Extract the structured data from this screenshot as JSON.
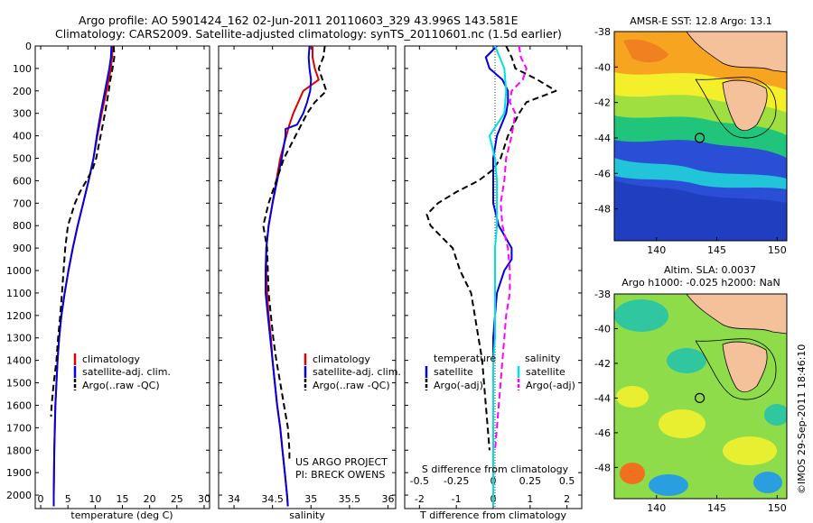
{
  "header": {
    "line1": "Argo profile: AO 5901424_162 02-Jun-2011 20110603_329 43.996S 143.581E",
    "line2": "Climatology: CARS2009. Satellite-adjusted climatology: synTS_20110601.nc (1.5d earlier)"
  },
  "colors": {
    "climatology": "#e00000",
    "satellite": "#0000e0",
    "argo": "#000000",
    "sat_salinity_diff": "#00e0e0",
    "argo_salinity_diff": "#ff00ff"
  },
  "depth_axis": {
    "ylim": [
      0,
      2060
    ],
    "ticks": [
      "0",
      "100",
      "200",
      "300",
      "400",
      "500",
      "600",
      "700",
      "800",
      "900",
      "1000",
      "1100",
      "1200",
      "1300",
      "1400",
      "1500",
      "1600",
      "1700",
      "1800",
      "1900",
      "2000"
    ]
  },
  "chart_data": [
    {
      "type": "line",
      "id": "temperature",
      "xlabel": "temperature (deg C)",
      "xlim": [
        -1,
        31
      ],
      "xticks": [
        0,
        5,
        10,
        15,
        20,
        25,
        30
      ],
      "legend": {
        "placement": "lower-middle",
        "items": [
          "climatology",
          "satellite-adj. clim.",
          "Argo(..raw -QC)"
        ]
      },
      "series": [
        {
          "name": "climatology",
          "style": "solid",
          "color": "#e00000",
          "depth": [
            0,
            50,
            100,
            200,
            300,
            400,
            500,
            600,
            700,
            800,
            900,
            1000,
            1100,
            1200,
            1300,
            1400,
            1500,
            1600,
            1700,
            1800,
            1900,
            2000,
            2050
          ],
          "values": [
            13.2,
            13.1,
            12.9,
            12.1,
            11.2,
            10.4,
            9.7,
            8.8,
            7.8,
            6.8,
            5.9,
            5.1,
            4.4,
            3.8,
            3.4,
            3.1,
            2.9,
            2.7,
            2.6,
            2.5,
            2.45,
            2.4,
            2.4
          ]
        },
        {
          "name": "satellite-adj. clim.",
          "style": "solid",
          "color": "#0000e0",
          "depth": [
            0,
            50,
            100,
            200,
            300,
            400,
            500,
            600,
            700,
            800,
            900,
            1000,
            1100,
            1200,
            1300,
            1400,
            1500,
            1600,
            1700,
            1800,
            1900,
            2000,
            2050
          ],
          "values": [
            13.0,
            12.9,
            12.6,
            11.8,
            11.0,
            10.3,
            9.7,
            8.8,
            7.8,
            6.8,
            5.9,
            5.1,
            4.4,
            3.8,
            3.4,
            3.1,
            2.9,
            2.7,
            2.6,
            2.5,
            2.45,
            2.4,
            2.4
          ]
        },
        {
          "name": "Argo(..raw -QC)",
          "style": "dashed",
          "color": "#000000",
          "depth": [
            0,
            50,
            100,
            150,
            200,
            300,
            400,
            500,
            550,
            600,
            650,
            700,
            800,
            900,
            1000,
            1100,
            1200,
            1300,
            1400,
            1500,
            1600,
            1650
          ],
          "values": [
            13.4,
            13.5,
            13.2,
            12.8,
            12.5,
            11.8,
            11.0,
            10.2,
            9.5,
            8.4,
            7.2,
            6.3,
            5.0,
            4.5,
            4.2,
            3.9,
            3.6,
            3.2,
            2.9,
            2.4,
            2.0,
            1.9
          ]
        }
      ]
    },
    {
      "type": "line",
      "id": "salinity",
      "xlabel": "salinity",
      "xlim": [
        33.8,
        36.1
      ],
      "xticks": [
        34,
        34.5,
        35,
        35.5,
        36
      ],
      "legend": {
        "placement": "lower-right",
        "items": [
          "climatology",
          "satellite-adj. clim.",
          "Argo(..raw -QC)"
        ]
      },
      "annotation": [
        "US ARGO PROJECT",
        "PI: BRECK OWENS"
      ],
      "series": [
        {
          "name": "climatology",
          "style": "solid",
          "color": "#e00000",
          "depth": [
            0,
            50,
            100,
            150,
            200,
            300,
            350,
            400,
            500,
            600,
            700,
            800,
            900,
            1000,
            1100,
            1200,
            1300,
            1400,
            1500,
            1600,
            1700,
            1800,
            1900,
            2000,
            2050
          ],
          "values": [
            35.02,
            35.02,
            35.05,
            35.1,
            34.9,
            34.77,
            34.72,
            34.68,
            34.6,
            34.55,
            34.5,
            34.45,
            34.42,
            34.42,
            34.43,
            34.45,
            34.48,
            34.5,
            34.53,
            34.56,
            34.6,
            34.63,
            34.66,
            34.69,
            34.7
          ]
        },
        {
          "name": "satellite-adj. clim.",
          "style": "solid",
          "color": "#0000e0",
          "depth": [
            0,
            50,
            100,
            150,
            200,
            250,
            300,
            350,
            370,
            400,
            500,
            600,
            700,
            800,
            900,
            1000,
            1100,
            1200,
            1300,
            1400,
            1500,
            1600,
            1700,
            1800,
            1900,
            2000,
            2050
          ],
          "values": [
            34.98,
            34.97,
            34.98,
            35.0,
            34.99,
            34.95,
            34.9,
            34.82,
            34.67,
            34.67,
            34.62,
            34.56,
            34.5,
            34.45,
            34.42,
            34.41,
            34.41,
            34.44,
            34.47,
            34.5,
            34.53,
            34.56,
            34.6,
            34.63,
            34.66,
            34.69,
            34.7
          ]
        },
        {
          "name": "Argo(..raw -QC)",
          "style": "dashed",
          "color": "#000000",
          "depth": [
            0,
            50,
            100,
            150,
            200,
            250,
            300,
            400,
            500,
            600,
            700,
            800,
            900,
            1000,
            1100,
            1200,
            1300,
            1400,
            1500,
            1600,
            1700,
            1800,
            1850
          ],
          "values": [
            35.18,
            35.16,
            35.1,
            35.15,
            35.2,
            35.05,
            34.95,
            34.8,
            34.65,
            34.55,
            34.45,
            34.38,
            34.43,
            34.44,
            34.45,
            34.48,
            34.51,
            34.55,
            34.6,
            34.65,
            34.7,
            34.72,
            34.72
          ]
        }
      ]
    },
    {
      "type": "line",
      "id": "differences",
      "xlabel_top": "S difference from climatology",
      "xlabel": "T difference from climatology",
      "xlim": [
        -2.4,
        2.4
      ],
      "xticks_T": [
        -2,
        -1,
        0,
        1,
        2
      ],
      "xticks_S": [
        "-0.5",
        "-0.25",
        "0",
        "0.25",
        "0.5"
      ],
      "legend": {
        "placement": "lower-middle",
        "temperature_title": "temperature",
        "salinity_title": "salinity",
        "items": [
          "satellite",
          "Argo(-adj)",
          "satellite",
          "Argo(-adj)"
        ]
      },
      "series": [
        {
          "name": "temperature satellite",
          "style": "solid",
          "color": "#0000e0",
          "depth": [
            0,
            50,
            100,
            150,
            200,
            250,
            300,
            400,
            500,
            600,
            700,
            800,
            900,
            950,
            1000,
            1100,
            1200,
            1300,
            1400,
            1500,
            1600,
            1700,
            1800,
            1900,
            2000,
            2050
          ],
          "values": [
            0.1,
            -0.2,
            -0.1,
            0.25,
            0.4,
            0.4,
            0.35,
            0.1,
            0,
            0,
            0,
            0.15,
            0.5,
            0.5,
            0.3,
            0.1,
            0.05,
            0,
            0,
            0,
            0,
            0,
            0,
            0,
            0,
            0
          ]
        },
        {
          "name": "temperature Argo(-adj)",
          "style": "dashed",
          "color": "#000000",
          "depth": [
            0,
            50,
            100,
            150,
            200,
            250,
            300,
            400,
            500,
            550,
            600,
            650,
            700,
            750,
            800,
            850,
            900,
            1000,
            1100,
            1200,
            1300,
            1400,
            1500,
            1600,
            1700,
            1800
          ],
          "values": [
            0.35,
            0.5,
            0.6,
            1.2,
            1.7,
            0.9,
            0.7,
            0.4,
            0.2,
            0,
            -0.4,
            -1.0,
            -1.5,
            -1.8,
            -1.7,
            -1.4,
            -1.1,
            -0.9,
            -0.6,
            -0.5,
            -0.4,
            -0.3,
            -0.25,
            -0.2,
            -0.15,
            -0.1
          ]
        },
        {
          "name": "salinity satellite",
          "style": "solid",
          "color": "#00e0e0",
          "depth": [
            0,
            100,
            200,
            300,
            400,
            500,
            600,
            700,
            800,
            900,
            1000,
            1100,
            1200,
            1300,
            1400,
            1500,
            1600,
            1700,
            1800,
            1900,
            2000,
            2050
          ],
          "values": [
            0.05,
            0.3,
            0.35,
            0.3,
            -0.1,
            0.05,
            0.1,
            0.1,
            0.1,
            0.05,
            0.05,
            0.05,
            0.05,
            0.05,
            0.0,
            0.0,
            0.0,
            0.0,
            0.0,
            0.0,
            0.0,
            0.0
          ]
        },
        {
          "name": "salinity Argo(-adj)",
          "style": "dashed",
          "color": "#ff00ff",
          "depth": [
            0,
            50,
            100,
            150,
            200,
            250,
            300,
            400,
            500,
            600,
            700,
            800,
            900,
            1000,
            1100,
            1200,
            1300,
            1400,
            1500,
            1600,
            1700,
            1800
          ],
          "values": [
            0.7,
            0.75,
            0.9,
            0.8,
            0.5,
            0.45,
            0.6,
            0.5,
            0.35,
            0.3,
            0.2,
            0.25,
            0.4,
            0.45,
            0.45,
            0.35,
            0.3,
            0.25,
            0.2,
            0.15,
            0.1,
            0.05
          ]
        }
      ]
    },
    {
      "type": "heatmap",
      "id": "sst-map",
      "title": "AMSR-E SST: 12.8  Argo: 13.1",
      "xlim": [
        136.5,
        150.8
      ],
      "ylim": [
        -49.8,
        -38
      ],
      "xticks": [
        "140",
        "145",
        "150"
      ],
      "yticks": [
        "-38",
        "-40",
        "-42",
        "-44",
        "-46",
        "-48"
      ],
      "marker": {
        "lon": 143.581,
        "lat": -43.996
      }
    },
    {
      "type": "heatmap",
      "id": "sla-map",
      "title": "Altim. SLA: 0.0037",
      "subtitle": "Argo h1000: -0.025 h2000: NaN",
      "xlim": [
        136.5,
        150.8
      ],
      "ylim": [
        -49.8,
        -38
      ],
      "xticks": [
        "140",
        "145",
        "150"
      ],
      "yticks": [
        "-38",
        "-40",
        "-42",
        "-44",
        "-46",
        "-48"
      ],
      "marker": {
        "lon": 143.581,
        "lat": -43.996
      }
    }
  ],
  "footer": {
    "stamp": "©IMOS 29-Sep-2011 18:46:10"
  }
}
